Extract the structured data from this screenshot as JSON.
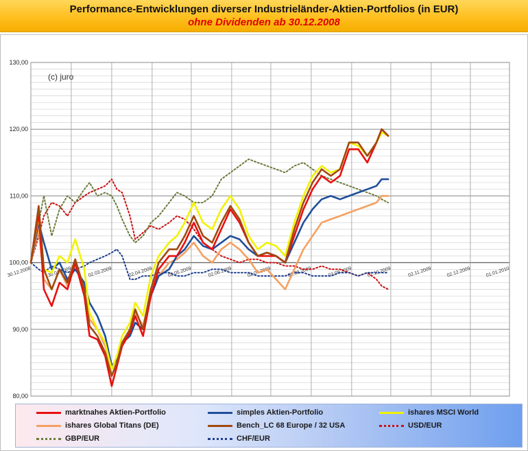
{
  "header": {
    "title": "Performance-Entwicklungen diverser Industrieländer-Aktien-Portfolios (in EUR)",
    "subtitle": "ohne Dividenden ab 30.12.2008"
  },
  "chart_data": {
    "type": "line",
    "title": "Performance-Entwicklungen diverser Industrieländer-Aktien-Portfolios (in EUR)",
    "subtitle": "ohne Dividenden ab 30.12.2008",
    "annotation": "(c) juro",
    "xlabel": "",
    "ylabel": "",
    "ylim": [
      80,
      130
    ],
    "yticks": [
      "80,00",
      "90,00",
      "100,00",
      "110,00",
      "120,00",
      "130,00"
    ],
    "xlim": [
      "30.12.2008",
      "01.01.2010"
    ],
    "xtick_labels": [
      "30.12.2008",
      "30.01.2009",
      "02.03.2009",
      "02.04.2009",
      "02.05.2009",
      "02.06.2009",
      "02.07.2009",
      "02.08.2009",
      "02.09.2009",
      "02.10.2009",
      "02.11.2009",
      "02.12.2009",
      "01.01.2010"
    ],
    "grid": true,
    "legend_position": "bottom",
    "series": [
      {
        "name": "marktnahes Aktien-Portfolio",
        "color": "#e81010",
        "style": "solid",
        "x": [
          "30.12.2008",
          "05.01.2009",
          "09.01.2009",
          "15.01.2009",
          "21.01.2009",
          "27.01.2009",
          "02.02.2009",
          "09.02.2009",
          "13.02.2009",
          "19.02.2009",
          "25.02.2009",
          "02.03.2009",
          "06.03.2009",
          "10.03.2009",
          "16.03.2009",
          "20.03.2009",
          "26.03.2009",
          "01.04.2009",
          "07.04.2009",
          "15.04.2009",
          "21.04.2009",
          "27.04.2009",
          "04.05.2009",
          "11.05.2009",
          "18.05.2009",
          "25.05.2009",
          "01.06.2009",
          "08.06.2009",
          "15.06.2009",
          "22.06.2009",
          "29.06.2009",
          "06.07.2009",
          "13.07.2009",
          "20.07.2009",
          "27.07.2009",
          "03.08.2009",
          "10.08.2009",
          "17.08.2009",
          "24.08.2009",
          "31.08.2009",
          "07.09.2009",
          "14.09.2009",
          "21.09.2009",
          "25.09.2009",
          "30.09.2009"
        ],
        "values": [
          100.0,
          107.5,
          96.0,
          93.5,
          97.0,
          96.0,
          100.0,
          95.0,
          89.0,
          88.5,
          86.0,
          81.5,
          84.5,
          87.5,
          89.5,
          92.0,
          89.0,
          95.0,
          99.0,
          101.0,
          101.0,
          103.0,
          106.0,
          103.0,
          102.0,
          105.0,
          108.0,
          106.0,
          103.0,
          101.0,
          101.0,
          101.0,
          100.0,
          104.0,
          108.0,
          111.0,
          113.0,
          112.0,
          113.0,
          117.0,
          117.0,
          115.0,
          118.0,
          120.0,
          119.0
        ]
      },
      {
        "name": "simples Aktien-Portfolio",
        "color": "#1f4e9a",
        "style": "solid",
        "x": [
          "30.12.2008",
          "05.01.2009",
          "09.01.2009",
          "15.01.2009",
          "21.01.2009",
          "27.01.2009",
          "02.02.2009",
          "09.02.2009",
          "13.02.2009",
          "19.02.2009",
          "25.02.2009",
          "02.03.2009",
          "06.03.2009",
          "10.03.2009",
          "16.03.2009",
          "20.03.2009",
          "26.03.2009",
          "01.04.2009",
          "07.04.2009",
          "15.04.2009",
          "21.04.2009",
          "27.04.2009",
          "04.05.2009",
          "11.05.2009",
          "18.05.2009",
          "25.05.2009",
          "01.06.2009",
          "08.06.2009",
          "15.06.2009",
          "22.06.2009",
          "29.06.2009",
          "06.07.2009",
          "13.07.2009",
          "20.07.2009",
          "27.07.2009",
          "03.08.2009",
          "10.08.2009",
          "17.08.2009",
          "24.08.2009",
          "31.08.2009",
          "07.09.2009",
          "14.09.2009",
          "21.09.2009",
          "25.09.2009",
          "30.09.2009"
        ],
        "values": [
          100.0,
          106.0,
          103.0,
          99.0,
          100.0,
          97.5,
          99.0,
          97.0,
          94.0,
          92.0,
          89.0,
          84.5,
          85.5,
          88.0,
          89.0,
          91.0,
          90.0,
          95.0,
          98.0,
          99.0,
          101.0,
          102.0,
          104.0,
          102.5,
          102.0,
          103.0,
          104.0,
          103.5,
          102.0,
          101.0,
          101.5,
          101.0,
          100.0,
          103.0,
          106.0,
          108.0,
          109.5,
          110.0,
          109.5,
          110.0,
          110.5,
          111.0,
          111.5,
          112.5,
          112.5
        ]
      },
      {
        "name": "ishares MSCI World",
        "color": "#f2f200",
        "style": "solid",
        "x": [
          "30.12.2008",
          "05.01.2009",
          "09.01.2009",
          "15.01.2009",
          "21.01.2009",
          "27.01.2009",
          "02.02.2009",
          "09.02.2009",
          "13.02.2009",
          "19.02.2009",
          "25.02.2009",
          "02.03.2009",
          "06.03.2009",
          "10.03.2009",
          "16.03.2009",
          "20.03.2009",
          "26.03.2009",
          "01.04.2009",
          "07.04.2009",
          "15.04.2009",
          "21.04.2009",
          "27.04.2009",
          "04.05.2009",
          "11.05.2009",
          "18.05.2009",
          "25.05.2009",
          "01.06.2009",
          "08.06.2009",
          "15.06.2009",
          "22.06.2009",
          "29.06.2009",
          "06.07.2009",
          "13.07.2009",
          "20.07.2009",
          "27.07.2009",
          "03.08.2009",
          "10.08.2009",
          "17.08.2009",
          "24.08.2009",
          "31.08.2009",
          "07.09.2009",
          "14.09.2009",
          "21.09.2009",
          "25.09.2009",
          "30.09.2009"
        ],
        "values": [
          100.0,
          107.0,
          99.0,
          98.5,
          101.0,
          100.0,
          103.5,
          99.0,
          92.5,
          90.0,
          88.0,
          84.0,
          86.0,
          89.0,
          91.0,
          94.0,
          92.0,
          98.0,
          101.0,
          103.0,
          104.0,
          106.0,
          109.0,
          106.0,
          105.0,
          108.0,
          110.0,
          108.0,
          104.0,
          102.0,
          103.0,
          102.5,
          101.0,
          106.0,
          110.0,
          113.0,
          114.5,
          113.5,
          114.0,
          118.0,
          117.5,
          116.0,
          118.0,
          119.5,
          119.0
        ]
      },
      {
        "name": "ishares Global Titans (DE)",
        "color": "#f4a060",
        "style": "solid",
        "x": [
          "30.12.2008",
          "05.01.2009",
          "09.01.2009",
          "15.01.2009",
          "21.01.2009",
          "27.01.2009",
          "02.02.2009",
          "09.02.2009",
          "13.02.2009",
          "19.02.2009",
          "25.02.2009",
          "02.03.2009",
          "06.03.2009",
          "10.03.2009",
          "16.03.2009",
          "20.03.2009",
          "26.03.2009",
          "01.04.2009",
          "07.04.2009",
          "15.04.2009",
          "21.04.2009",
          "27.04.2009",
          "04.05.2009",
          "11.05.2009",
          "18.05.2009",
          "25.05.2009",
          "01.06.2009",
          "08.06.2009",
          "15.06.2009",
          "22.06.2009",
          "29.06.2009",
          "06.07.2009",
          "13.07.2009",
          "20.07.2009",
          "27.07.2009",
          "03.08.2009",
          "10.08.2009",
          "17.08.2009",
          "24.08.2009",
          "31.08.2009",
          "07.09.2009",
          "14.09.2009",
          "21.09.2009",
          "25.09.2009",
          "30.09.2009"
        ],
        "values": [
          100.0,
          105.0,
          97.5,
          96.0,
          99.0,
          96.5,
          99.5,
          96.0,
          91.5,
          90.0,
          87.5,
          84.0,
          85.5,
          88.0,
          90.0,
          92.5,
          90.5,
          95.5,
          98.0,
          100.0,
          100.5,
          101.5,
          103.0,
          101.0,
          100.0,
          102.0,
          103.0,
          102.0,
          100.5,
          98.5,
          99.0,
          97.5,
          96.0,
          99.0,
          102.0,
          104.0,
          106.0,
          106.5,
          107.0,
          107.5,
          108.0,
          108.5,
          109.0,
          110.0,
          110.0
        ]
      },
      {
        "name": "Bench_LC  68 Europe / 32 USA",
        "color": "#a0490f",
        "style": "solid",
        "x": [
          "30.12.2008",
          "05.01.2009",
          "09.01.2009",
          "15.01.2009",
          "21.01.2009",
          "27.01.2009",
          "02.02.2009",
          "09.02.2009",
          "13.02.2009",
          "19.02.2009",
          "25.02.2009",
          "02.03.2009",
          "06.03.2009",
          "10.03.2009",
          "16.03.2009",
          "20.03.2009",
          "26.03.2009",
          "01.04.2009",
          "07.04.2009",
          "15.04.2009",
          "21.04.2009",
          "27.04.2009",
          "04.05.2009",
          "11.05.2009",
          "18.05.2009",
          "25.05.2009",
          "01.06.2009",
          "08.06.2009",
          "15.06.2009",
          "22.06.2009",
          "29.06.2009",
          "06.07.2009",
          "13.07.2009",
          "20.07.2009",
          "27.07.2009",
          "03.08.2009",
          "10.08.2009",
          "17.08.2009",
          "24.08.2009",
          "31.08.2009",
          "07.09.2009",
          "14.09.2009",
          "21.09.2009",
          "25.09.2009",
          "30.09.2009"
        ],
        "values": [
          100.0,
          108.5,
          99.0,
          96.0,
          99.0,
          97.0,
          100.5,
          96.0,
          90.5,
          89.0,
          86.5,
          83.0,
          85.0,
          88.0,
          90.0,
          93.0,
          90.0,
          96.0,
          100.0,
          102.0,
          102.0,
          104.0,
          107.0,
          104.0,
          103.0,
          106.0,
          108.5,
          106.5,
          103.0,
          101.0,
          101.5,
          101.0,
          100.0,
          105.0,
          109.0,
          112.0,
          114.0,
          113.0,
          114.0,
          118.0,
          118.0,
          116.0,
          118.0,
          120.0,
          119.0
        ]
      },
      {
        "name": "USD/EUR",
        "color": "#cc1010",
        "style": "dotted",
        "x": [
          "30.12.2008",
          "05.01.2009",
          "09.01.2009",
          "15.01.2009",
          "21.01.2009",
          "27.01.2009",
          "02.02.2009",
          "09.02.2009",
          "13.02.2009",
          "19.02.2009",
          "25.02.2009",
          "02.03.2009",
          "06.03.2009",
          "10.03.2009",
          "16.03.2009",
          "20.03.2009",
          "26.03.2009",
          "01.04.2009",
          "07.04.2009",
          "15.04.2009",
          "21.04.2009",
          "27.04.2009",
          "04.05.2009",
          "11.05.2009",
          "18.05.2009",
          "25.05.2009",
          "01.06.2009",
          "08.06.2009",
          "15.06.2009",
          "22.06.2009",
          "29.06.2009",
          "06.07.2009",
          "13.07.2009",
          "20.07.2009",
          "27.07.2009",
          "03.08.2009",
          "10.08.2009",
          "17.08.2009",
          "24.08.2009",
          "31.08.2009",
          "07.09.2009",
          "14.09.2009",
          "21.09.2009",
          "25.09.2009",
          "30.09.2009"
        ],
        "values": [
          100.0,
          104.0,
          107.0,
          109.0,
          108.5,
          107.0,
          109.0,
          110.0,
          110.5,
          111.0,
          111.5,
          112.5,
          111.0,
          110.5,
          107.0,
          103.5,
          104.5,
          105.5,
          105.0,
          106.0,
          107.0,
          106.5,
          105.0,
          103.0,
          102.0,
          101.0,
          100.5,
          100.0,
          100.5,
          100.5,
          100.0,
          100.0,
          99.5,
          99.5,
          99.0,
          99.0,
          99.5,
          99.0,
          99.0,
          98.5,
          98.0,
          98.5,
          97.5,
          96.5,
          96.0
        ]
      },
      {
        "name": "GBP/EUR",
        "color": "#6b7a3a",
        "style": "dotted",
        "x": [
          "30.12.2008",
          "05.01.2009",
          "09.01.2009",
          "15.01.2009",
          "21.01.2009",
          "27.01.2009",
          "02.02.2009",
          "09.02.2009",
          "13.02.2009",
          "19.02.2009",
          "25.02.2009",
          "02.03.2009",
          "06.03.2009",
          "10.03.2009",
          "16.03.2009",
          "20.03.2009",
          "26.03.2009",
          "01.04.2009",
          "07.04.2009",
          "15.04.2009",
          "21.04.2009",
          "27.04.2009",
          "04.05.2009",
          "11.05.2009",
          "18.05.2009",
          "25.05.2009",
          "01.06.2009",
          "08.06.2009",
          "15.06.2009",
          "22.06.2009",
          "29.06.2009",
          "06.07.2009",
          "13.07.2009",
          "20.07.2009",
          "27.07.2009",
          "03.08.2009",
          "10.08.2009",
          "17.08.2009",
          "24.08.2009",
          "31.08.2009",
          "07.09.2009",
          "14.09.2009",
          "21.09.2009",
          "25.09.2009",
          "30.09.2009"
        ],
        "values": [
          100.0,
          106.0,
          110.0,
          104.0,
          108.0,
          110.0,
          109.0,
          111.0,
          112.0,
          110.0,
          110.5,
          110.0,
          108.5,
          106.5,
          104.0,
          103.0,
          104.0,
          106.0,
          107.0,
          109.0,
          110.5,
          110.0,
          109.0,
          109.0,
          110.0,
          112.5,
          113.5,
          114.5,
          115.5,
          115.0,
          114.5,
          114.0,
          113.5,
          114.5,
          115.0,
          114.0,
          113.0,
          112.5,
          112.0,
          111.5,
          111.0,
          110.5,
          110.0,
          109.5,
          109.0
        ]
      },
      {
        "name": "CHF/EUR",
        "color": "#1f3f8f",
        "style": "dotted",
        "x": [
          "30.12.2008",
          "05.01.2009",
          "09.01.2009",
          "15.01.2009",
          "21.01.2009",
          "27.01.2009",
          "02.02.2009",
          "09.02.2009",
          "13.02.2009",
          "19.02.2009",
          "25.02.2009",
          "02.03.2009",
          "06.03.2009",
          "10.03.2009",
          "16.03.2009",
          "20.03.2009",
          "26.03.2009",
          "01.04.2009",
          "07.04.2009",
          "15.04.2009",
          "21.04.2009",
          "27.04.2009",
          "04.05.2009",
          "11.05.2009",
          "18.05.2009",
          "25.05.2009",
          "01.06.2009",
          "08.06.2009",
          "15.06.2009",
          "22.06.2009",
          "29.06.2009",
          "06.07.2009",
          "13.07.2009",
          "20.07.2009",
          "27.07.2009",
          "03.08.2009",
          "10.08.2009",
          "17.08.2009",
          "24.08.2009",
          "31.08.2009",
          "07.09.2009",
          "14.09.2009",
          "21.09.2009",
          "25.09.2009",
          "30.09.2009"
        ],
        "values": [
          100.0,
          99.0,
          98.5,
          99.5,
          99.0,
          98.5,
          99.0,
          99.5,
          100.0,
          100.5,
          101.0,
          101.5,
          102.0,
          101.0,
          97.5,
          97.5,
          98.0,
          98.0,
          98.5,
          98.5,
          98.0,
          98.0,
          98.5,
          98.5,
          99.0,
          99.0,
          98.5,
          98.5,
          98.5,
          98.0,
          98.0,
          98.0,
          98.0,
          98.5,
          98.5,
          98.0,
          98.0,
          98.0,
          98.5,
          98.5,
          98.0,
          98.5,
          98.5,
          98.5,
          98.5
        ]
      }
    ]
  }
}
